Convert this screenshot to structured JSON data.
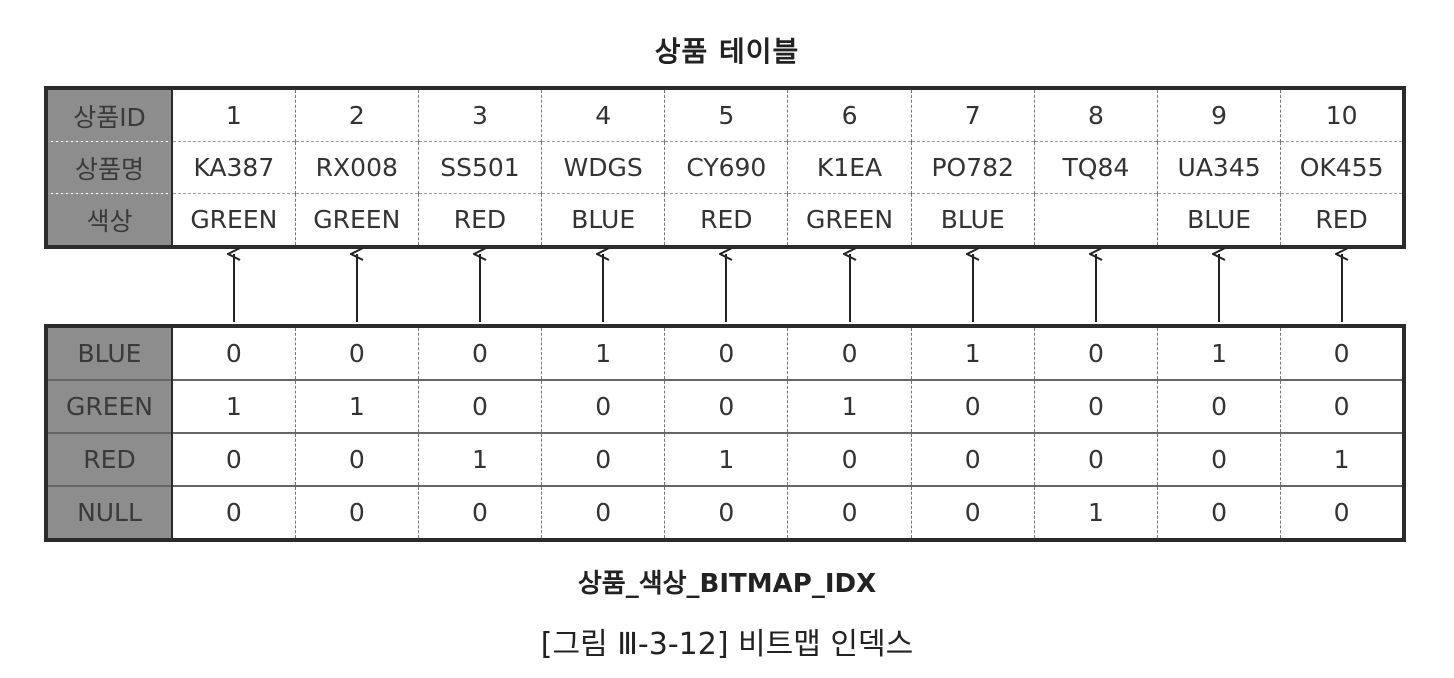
{
  "title": "상품 테이블",
  "product_table": {
    "row_labels": [
      "상품ID",
      "상품명",
      "색상"
    ],
    "ids": [
      "1",
      "2",
      "3",
      "4",
      "5",
      "6",
      "7",
      "8",
      "9",
      "10"
    ],
    "names": [
      "KA387",
      "RX008",
      "SS501",
      "WDGS",
      "CY690",
      "K1EA",
      "PO782",
      "TQ84",
      "UA345",
      "OK455"
    ],
    "colors": [
      "GREEN",
      "GREEN",
      "RED",
      "BLUE",
      "RED",
      "GREEN",
      "BLUE",
      "",
      "BLUE",
      "RED"
    ]
  },
  "bitmap_index": {
    "rows": [
      {
        "label": "BLUE",
        "bits": [
          "0",
          "0",
          "0",
          "1",
          "0",
          "0",
          "1",
          "0",
          "1",
          "0"
        ]
      },
      {
        "label": "GREEN",
        "bits": [
          "1",
          "1",
          "0",
          "0",
          "0",
          "1",
          "0",
          "0",
          "0",
          "0"
        ]
      },
      {
        "label": "RED",
        "bits": [
          "0",
          "0",
          "1",
          "0",
          "1",
          "0",
          "0",
          "0",
          "0",
          "1"
        ]
      },
      {
        "label": "NULL",
        "bits": [
          "0",
          "0",
          "0",
          "0",
          "0",
          "0",
          "0",
          "1",
          "0",
          "0"
        ]
      }
    ]
  },
  "index_name": "상품_색상_BITMAP_IDX",
  "figure_caption": "[그림 Ⅲ-3-12] 비트맵 인덱스"
}
